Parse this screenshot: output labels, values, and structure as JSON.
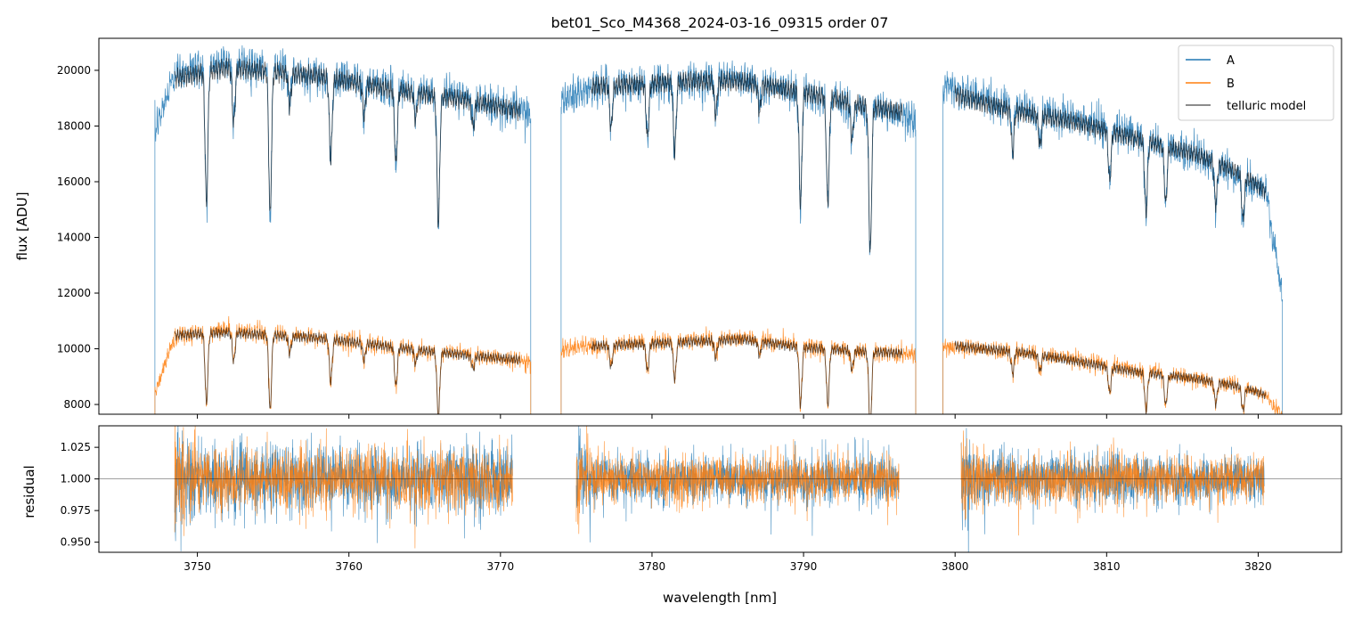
{
  "chart_data": [
    {
      "type": "line",
      "title": "bet01_Sco_M4368_2024-03-16_09315  order 07",
      "xlabel": "",
      "ylabel": "flux [ADU]",
      "xlim": [
        3743.5,
        3825.5
      ],
      "ylim": [
        7650,
        21150
      ],
      "yticks": [
        8000,
        10000,
        12000,
        14000,
        16000,
        18000,
        20000
      ],
      "xticks": [
        3750,
        3760,
        3770,
        3780,
        3790,
        3800,
        3810,
        3820
      ],
      "segments": [
        {
          "start": 3747.2,
          "end": 3772.0
        },
        {
          "start": 3774.0,
          "end": 3797.4
        },
        {
          "start": 3799.2,
          "end": 3821.6
        }
      ],
      "series": [
        {
          "name": "A",
          "color": "#1f77b4",
          "continuum": [
            [
              3747.3,
              18300
            ],
            [
              3748.5,
              20300
            ],
            [
              3752,
              20700
            ],
            [
              3758,
              20200
            ],
            [
              3764,
              19700
            ],
            [
              3768,
              19400
            ],
            [
              3772,
              18800
            ],
            [
              3774.2,
              19300
            ],
            [
              3776,
              19800
            ],
            [
              3782,
              20000
            ],
            [
              3786,
              20100
            ],
            [
              3790,
              19600
            ],
            [
              3794,
              19100
            ],
            [
              3797.4,
              18600
            ],
            [
              3799.3,
              19800
            ],
            [
              3804,
              19000
            ],
            [
              3808,
              18600
            ],
            [
              3812,
              18000
            ],
            [
              3816,
              17300
            ],
            [
              3819,
              16500
            ],
            [
              3820.5,
              16000
            ],
            [
              3821.6,
              12000
            ]
          ],
          "model_continuum": [
            [
              3748.5,
              20100
            ],
            [
              3752,
              20500
            ],
            [
              3758,
              20200
            ],
            [
              3764,
              19600
            ],
            [
              3768,
              19300
            ],
            [
              3771.3,
              18900
            ],
            [
              3776,
              19800
            ],
            [
              3782,
              20000
            ],
            [
              3786,
              20000
            ],
            [
              3790,
              19600
            ],
            [
              3794,
              19100
            ],
            [
              3796.5,
              18900
            ],
            [
              3800,
              19500
            ],
            [
              3804,
              18900
            ],
            [
              3808,
              18500
            ],
            [
              3812,
              17900
            ],
            [
              3816,
              17300
            ],
            [
              3819,
              16600
            ],
            [
              3820.5,
              15950
            ]
          ]
        },
        {
          "name": "B",
          "color": "#ff7f0e",
          "continuum": [
            [
              3747.3,
              8700
            ],
            [
              3748.5,
              10700
            ],
            [
              3752,
              10900
            ],
            [
              3758,
              10600
            ],
            [
              3764,
              10200
            ],
            [
              3768,
              10000
            ],
            [
              3772,
              9700
            ],
            [
              3774.2,
              10200
            ],
            [
              3776,
              10300
            ],
            [
              3782,
              10500
            ],
            [
              3786,
              10600
            ],
            [
              3790,
              10300
            ],
            [
              3794,
              10100
            ],
            [
              3797.4,
              10000
            ],
            [
              3799.3,
              10300
            ],
            [
              3804,
              10100
            ],
            [
              3808,
              9800
            ],
            [
              3812,
              9400
            ],
            [
              3816,
              9100
            ],
            [
              3819,
              8800
            ],
            [
              3820.5,
              8500
            ],
            [
              3821.6,
              7700
            ]
          ],
          "model_continuum": [
            [
              3748.5,
              10700
            ],
            [
              3752,
              10800
            ],
            [
              3758,
              10600
            ],
            [
              3764,
              10200
            ],
            [
              3768,
              9950
            ],
            [
              3771.3,
              9800
            ],
            [
              3776,
              10300
            ],
            [
              3782,
              10450
            ],
            [
              3786,
              10550
            ],
            [
              3790,
              10250
            ],
            [
              3794,
              10100
            ],
            [
              3796.5,
              10050
            ],
            [
              3800,
              10300
            ],
            [
              3804,
              10100
            ],
            [
              3808,
              9750
            ],
            [
              3812,
              9350
            ],
            [
              3816,
              9100
            ],
            [
              3819,
              8800
            ],
            [
              3820.5,
              8500
            ]
          ]
        },
        {
          "name": "telluric model",
          "color": "#000000"
        }
      ],
      "absorption_lines": [
        [
          3750.6,
          0.24
        ],
        [
          3752.4,
          0.1
        ],
        [
          3754.8,
          0.26
        ],
        [
          3756.1,
          0.06
        ],
        [
          3758.8,
          0.15
        ],
        [
          3761.0,
          0.06
        ],
        [
          3763.1,
          0.14
        ],
        [
          3764.4,
          0.05
        ],
        [
          3765.9,
          0.24
        ],
        [
          3768.2,
          0.05
        ],
        [
          3777.3,
          0.08
        ],
        [
          3779.7,
          0.1
        ],
        [
          3781.5,
          0.13
        ],
        [
          3784.2,
          0.06
        ],
        [
          3787.1,
          0.05
        ],
        [
          3789.8,
          0.21
        ],
        [
          3791.6,
          0.2
        ],
        [
          3793.2,
          0.07
        ],
        [
          3794.4,
          0.28
        ],
        [
          3803.8,
          0.08
        ],
        [
          3805.6,
          0.06
        ],
        [
          3810.2,
          0.1
        ],
        [
          3812.6,
          0.15
        ],
        [
          3813.9,
          0.12
        ],
        [
          3817.2,
          0.09
        ],
        [
          3819.0,
          0.1
        ]
      ],
      "legend": {
        "position": "top-right",
        "entries": [
          "A",
          "B",
          "telluric model"
        ]
      }
    },
    {
      "type": "line",
      "title": "",
      "xlabel": "wavelength [nm]",
      "ylabel": "residual",
      "xlim": [
        3743.5,
        3825.5
      ],
      "ylim": [
        0.942,
        1.042
      ],
      "yticks": [
        0.95,
        0.975,
        1.0,
        1.025
      ],
      "ytick_labels": [
        "0.950",
        "0.975",
        "1.000",
        "1.025"
      ],
      "xticks": [
        3750,
        3760,
        3770,
        3780,
        3790,
        3800,
        3810,
        3820
      ],
      "reference_line": 1.0,
      "segments": [
        {
          "start": 3748.5,
          "end": 3770.8
        },
        {
          "start": 3775.0,
          "end": 3796.3
        },
        {
          "start": 3800.4,
          "end": 3820.4
        }
      ],
      "series": [
        {
          "name": "A",
          "color": "#1f77b4",
          "center": 1.0,
          "spread": 0.03
        },
        {
          "name": "B",
          "color": "#ff7f0e",
          "center": 1.0,
          "spread": 0.028
        }
      ]
    }
  ]
}
